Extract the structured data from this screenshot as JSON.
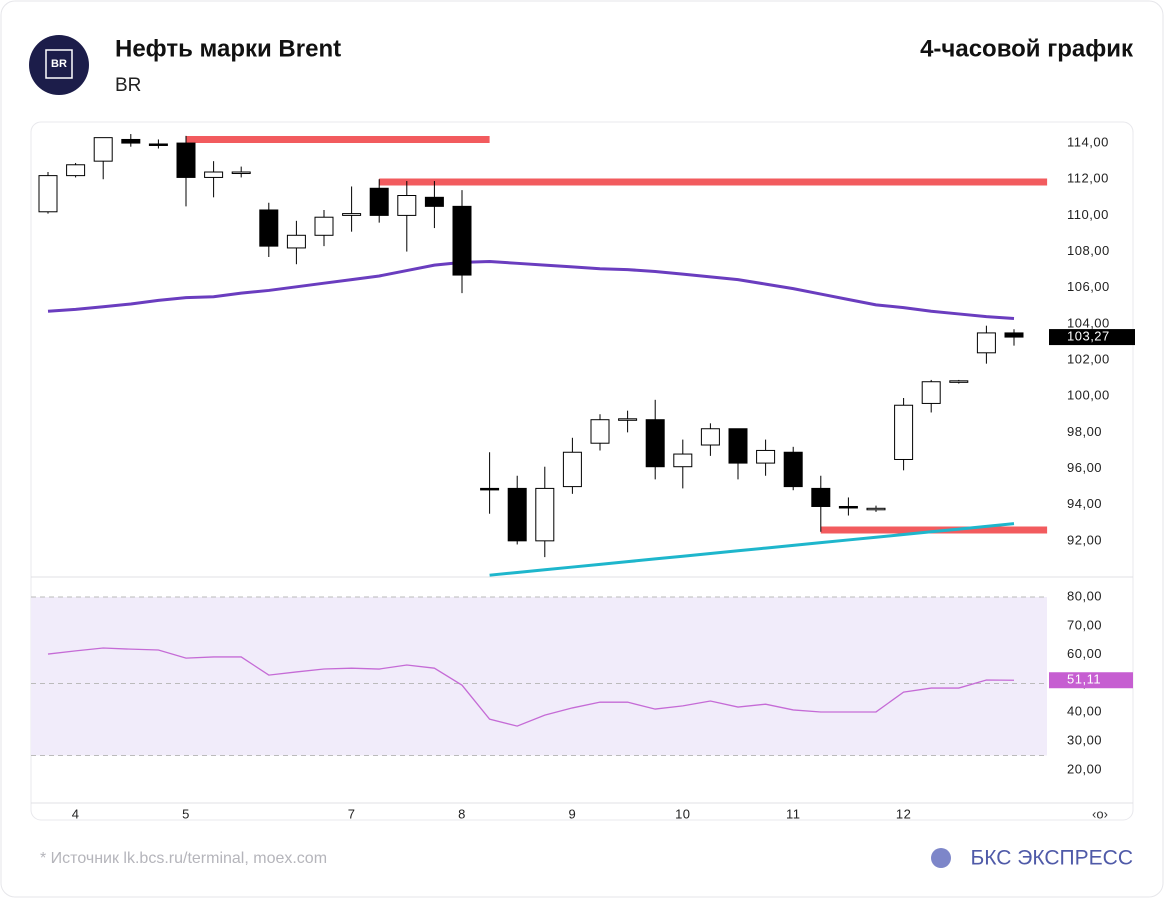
{
  "header": {
    "logo": "BR",
    "title": "Нефть марки Brent",
    "subtitle": "BR",
    "timeframe": "4-часовой график"
  },
  "chart_data": [
    {
      "type": "candlestick",
      "categories": [
        null,
        "4",
        null,
        null,
        null,
        "5",
        null,
        null,
        null,
        null,
        null,
        "7",
        null,
        null,
        null,
        "8",
        null,
        null,
        null,
        "9",
        null,
        null,
        null,
        "10",
        null,
        null,
        null,
        "11",
        null,
        null,
        null,
        "12",
        null,
        null,
        null,
        null
      ],
      "open": [
        110.2,
        112.2,
        113.0,
        114.2,
        113.95,
        114.0,
        112.1,
        112.4,
        110.3,
        108.2,
        108.9,
        110.0,
        111.5,
        110.0,
        111.0,
        110.5,
        94.9,
        94.9,
        92.0,
        95.0,
        97.4,
        98.7,
        98.7,
        96.1,
        97.3,
        98.2,
        96.3,
        96.9,
        94.9,
        93.9,
        93.8,
        96.5,
        99.6,
        100.8,
        102.4,
        103.5
      ],
      "high": [
        112.4,
        112.9,
        114.3,
        114.5,
        114.2,
        114.4,
        113.0,
        112.7,
        110.7,
        109.7,
        110.3,
        111.6,
        112.0,
        111.9,
        111.9,
        111.4,
        96.9,
        95.6,
        96.1,
        97.7,
        99.0,
        99.2,
        99.8,
        97.6,
        98.5,
        98.2,
        97.6,
        97.2,
        95.6,
        94.4,
        93.95,
        99.9,
        100.9,
        100.9,
        103.9,
        103.7
      ],
      "low": [
        110.1,
        112.1,
        112.0,
        113.8,
        113.7,
        110.5,
        111.0,
        112.1,
        107.7,
        107.3,
        108.3,
        109.1,
        109.6,
        108.0,
        109.3,
        105.7,
        93.5,
        91.8,
        91.1,
        94.6,
        97.0,
        98.0,
        95.4,
        94.9,
        96.7,
        95.4,
        95.6,
        94.8,
        92.5,
        93.4,
        93.6,
        95.9,
        99.1,
        100.7,
        101.8,
        102.8
      ],
      "close": [
        112.2,
        112.8,
        114.3,
        114.0,
        113.9,
        112.1,
        112.4,
        112.4,
        108.3,
        108.9,
        109.9,
        110.1,
        110.0,
        111.1,
        110.5,
        106.7,
        94.85,
        92.0,
        94.9,
        96.9,
        98.7,
        98.75,
        96.1,
        96.8,
        98.2,
        96.3,
        97.0,
        95.0,
        93.9,
        93.85,
        93.8,
        99.5,
        100.8,
        100.85,
        103.5,
        103.27
      ],
      "ylim": [
        90,
        115
      ],
      "yticks": [
        {
          "value": 92,
          "label": "92,00"
        },
        {
          "value": 94,
          "label": "94,00"
        },
        {
          "value": 96,
          "label": "96,00"
        },
        {
          "value": 98,
          "label": "98,00"
        },
        {
          "value": 100,
          "label": "100,00"
        },
        {
          "value": 102,
          "label": "102,00"
        },
        {
          "value": 104,
          "label": "104,00"
        },
        {
          "value": 106,
          "label": "106,00"
        },
        {
          "value": 108,
          "label": "108,00"
        },
        {
          "value": 110,
          "label": "110,00"
        },
        {
          "value": 112,
          "label": "112,00"
        },
        {
          "value": 114,
          "label": "114,00"
        }
      ],
      "series": [
        {
          "color": "#6a3dbf",
          "values": [
            104.7,
            104.8,
            104.95,
            105.1,
            105.3,
            105.45,
            105.5,
            105.7,
            105.85,
            106.05,
            106.25,
            106.45,
            106.65,
            106.95,
            107.25,
            107.4,
            107.45,
            107.35,
            107.25,
            107.15,
            107.05,
            107.0,
            106.9,
            106.75,
            106.6,
            106.45,
            106.2,
            105.95,
            105.65,
            105.35,
            105.05,
            104.9,
            104.7,
            104.55,
            104.4,
            104.3
          ]
        },
        {
          "color": "#1eb6cc",
          "values": [
            null,
            null,
            null,
            null,
            null,
            null,
            null,
            null,
            null,
            null,
            null,
            null,
            null,
            null,
            null,
            null,
            90.1,
            90.25,
            90.4,
            90.55,
            90.7,
            90.85,
            91.0,
            91.15,
            91.3,
            91.45,
            91.6,
            91.75,
            91.9,
            92.05,
            92.2,
            92.35,
            92.5,
            92.65,
            92.8,
            92.95
          ]
        }
      ],
      "levels": [
        {
          "value": 114.2,
          "x": [
            5,
            16
          ],
          "color": "#f25b5e"
        },
        {
          "value": 111.85,
          "x": [
            12,
            36.2
          ],
          "color": "#f25b5e"
        },
        {
          "value": 92.6,
          "x": [
            28,
            36.2
          ],
          "color": "#f25b5e"
        }
      ],
      "last_price": {
        "value": 103.27,
        "label": "103,27"
      }
    },
    {
      "type": "line",
      "series": [
        {
          "color": "#c56bd6",
          "values": [
            60.2,
            61.3,
            62.3,
            61.9,
            61.6,
            58.8,
            59.2,
            59.2,
            52.9,
            54.0,
            55.0,
            55.3,
            55.0,
            56.4,
            55.3,
            49.4,
            37.6,
            35.2,
            39.0,
            41.5,
            43.5,
            43.5,
            41.1,
            42.2,
            43.9,
            41.8,
            42.8,
            40.8,
            40.1,
            40.1,
            40.1,
            47.0,
            48.4,
            48.4,
            51.2,
            51.11
          ]
        }
      ],
      "ylim": [
        8.5,
        86.6
      ],
      "yticks": [
        {
          "value": 20,
          "label": "20,00"
        },
        {
          "value": 30,
          "label": "30,00"
        },
        {
          "value": 40,
          "label": "40,00"
        },
        {
          "value": 50,
          "label": "50,00"
        },
        {
          "value": 60,
          "label": "60,00"
        },
        {
          "value": 70,
          "label": "70,00"
        },
        {
          "value": 80,
          "label": "80,00"
        }
      ],
      "band": [
        25,
        80
      ],
      "reference_lines": [
        80,
        50,
        25
      ],
      "last_value": {
        "value": 51.11,
        "label": "51,11",
        "color": "#c65ed1"
      }
    }
  ],
  "footer": {
    "source": "* Источник lk.bcs.ru/terminal, moex.com",
    "brand": "БКС ЭКСПРЕСС"
  }
}
